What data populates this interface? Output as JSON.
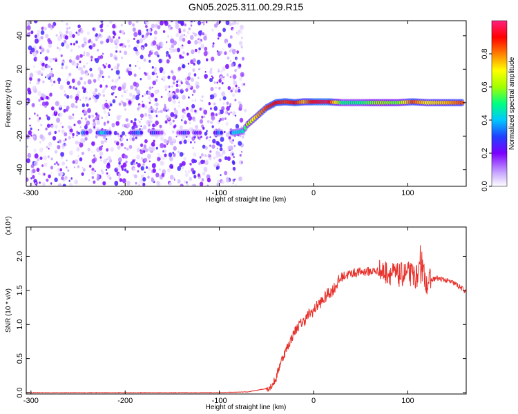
{
  "title": "GN05.2025.311.00.29.R15",
  "chart_data": [
    {
      "type": "heatmap",
      "title": "GN05.2025.311.00.29.R15",
      "xlabel": "Height of straight line (km)",
      "ylabel": "Frequency (Hz)",
      "xlim": [
        -305,
        162
      ],
      "ylim": [
        -50,
        49
      ],
      "x_ticks": [
        "-300",
        "-200",
        "-100",
        "0",
        "100"
      ],
      "y_ticks": [
        "-40",
        "-20",
        "0",
        "20",
        "40"
      ],
      "colorbar": {
        "label": "Normalized spectral amplitude",
        "range": [
          0,
          1
        ],
        "ticks": [
          "0.0",
          "0.2",
          "0.4",
          "0.6",
          "0.8"
        ],
        "colors": [
          "#ffffff",
          "#c9a8ff",
          "#7a00ff",
          "#2040ff",
          "#00c8ff",
          "#00ff80",
          "#a0ff00",
          "#ffff00",
          "#ff8000",
          "#ff0000",
          "#ff2080"
        ]
      },
      "noise_region_x": [
        -305,
        -75
      ],
      "track": [
        {
          "x": -245,
          "y": -18,
          "a": 0.35
        },
        {
          "x": -225,
          "y": -18,
          "a": 0.45
        },
        {
          "x": -185,
          "y": -18,
          "a": 0.35
        },
        {
          "x": -170,
          "y": -18,
          "a": 0.3
        },
        {
          "x": -135,
          "y": -18,
          "a": 0.3
        },
        {
          "x": -125,
          "y": -18,
          "a": 0.25
        },
        {
          "x": -100,
          "y": -18,
          "a": 0.35
        },
        {
          "x": -85,
          "y": -18,
          "a": 0.4
        },
        {
          "x": -75,
          "y": -17,
          "a": 0.45
        },
        {
          "x": -70,
          "y": -13,
          "a": 0.6
        },
        {
          "x": -60,
          "y": -8,
          "a": 0.75
        },
        {
          "x": -50,
          "y": -3,
          "a": 0.85
        },
        {
          "x": -40,
          "y": 0,
          "a": 0.9
        },
        {
          "x": -30,
          "y": 0.5,
          "a": 0.85
        },
        {
          "x": -20,
          "y": 0,
          "a": 0.9
        },
        {
          "x": -10,
          "y": 0.5,
          "a": 0.75
        },
        {
          "x": 0,
          "y": 0.5,
          "a": 0.92
        },
        {
          "x": 15,
          "y": 0.5,
          "a": 0.95
        },
        {
          "x": 30,
          "y": 0,
          "a": 0.5
        },
        {
          "x": 50,
          "y": 0,
          "a": 0.5
        },
        {
          "x": 70,
          "y": 0,
          "a": 0.6
        },
        {
          "x": 90,
          "y": 0,
          "a": 0.55
        },
        {
          "x": 105,
          "y": 0.5,
          "a": 0.85
        },
        {
          "x": 120,
          "y": 0,
          "a": 0.7
        },
        {
          "x": 140,
          "y": 0,
          "a": 0.75
        },
        {
          "x": 160,
          "y": 0,
          "a": 0.85
        }
      ]
    },
    {
      "type": "line",
      "title": "",
      "xlabel": "Height of straight line (km)",
      "ylabel": "SNR (10 * v/v)",
      "y_multiplier_label": "(x10⁴)",
      "xlim": [
        -305,
        162
      ],
      "ylim": [
        -0.02,
        2.43
      ],
      "x_ticks": [
        "-300",
        "-200",
        "-100",
        "0",
        "100"
      ],
      "y_ticks": [
        "0.0",
        "0.5",
        "1.0",
        "1.5",
        "2.0"
      ],
      "color": "#e8302a",
      "series": [
        {
          "x": [
            -305,
            -200,
            -100,
            -70,
            -50,
            -45,
            -40,
            -35,
            -30,
            -25,
            -20,
            -15,
            -10,
            -5,
            0,
            5,
            10,
            15,
            20,
            25,
            30,
            40,
            50,
            60,
            70,
            80,
            90,
            100,
            110,
            115,
            120,
            130,
            140,
            150,
            160,
            162
          ],
          "y": [
            0.0,
            0.0,
            0.0,
            0.01,
            0.06,
            0.1,
            0.2,
            0.45,
            0.6,
            0.75,
            0.9,
            1.0,
            1.05,
            1.15,
            1.2,
            1.3,
            1.35,
            1.45,
            1.5,
            1.6,
            1.7,
            1.75,
            1.77,
            1.78,
            1.78,
            1.76,
            1.72,
            1.75,
            1.7,
            1.8,
            1.62,
            1.68,
            1.65,
            1.6,
            1.5,
            1.48
          ]
        }
      ]
    }
  ]
}
